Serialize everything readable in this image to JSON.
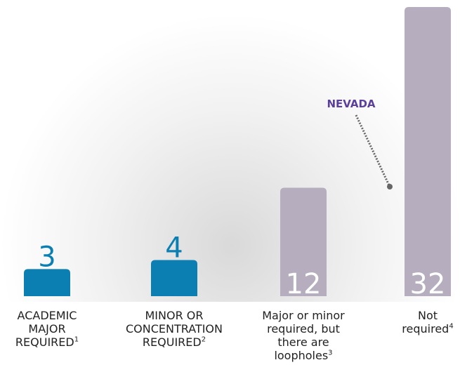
{
  "chart_data": {
    "type": "bar",
    "categories": [
      "ACADEMIC MAJOR REQUIRED",
      "MINOR OR CONCENTRATION REQUIRED",
      "Major or minor required, but there are loopholes",
      "Not required"
    ],
    "footnotes": [
      "1",
      "2",
      "3",
      "4"
    ],
    "values": [
      3,
      4,
      12,
      32
    ],
    "colors": [
      "#0b7fb1",
      "#0b7fb1",
      "#b6aebe",
      "#b6aebe"
    ],
    "ylim": [
      0,
      32
    ],
    "annotation": {
      "text": "NEVADA",
      "color": "#5b3f9c"
    }
  }
}
